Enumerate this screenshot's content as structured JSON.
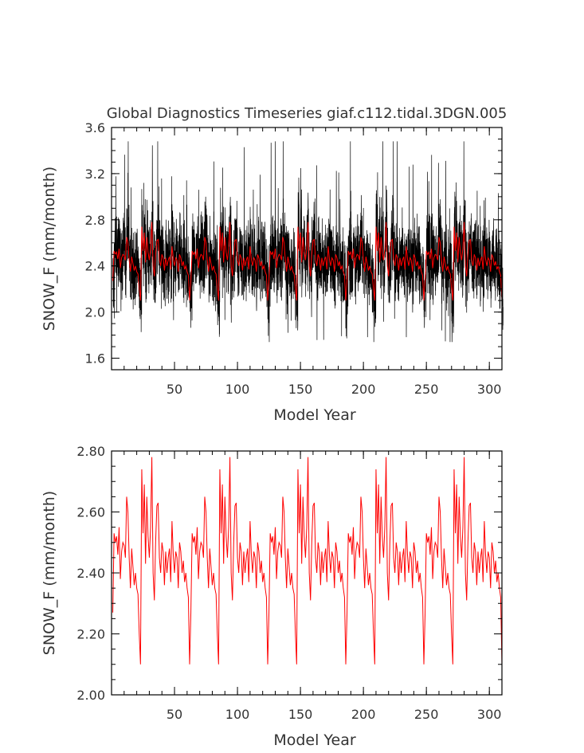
{
  "title": "Global Diagnostics Timeseries giaf.c112.tidal.3DGN.005",
  "colors": {
    "monthly": "#000000",
    "annual": "#ff0000",
    "axis": "#000000",
    "text": "#333333"
  },
  "chart_data": [
    {
      "type": "line",
      "title": "Global Diagnostics Timeseries giaf.c112.tidal.3DGN.005",
      "xlabel": "Model Year",
      "ylabel": "SNOW_F (mm/month)",
      "xlim": [
        0,
        310
      ],
      "ylim": [
        1.5,
        3.6
      ],
      "xticks": [
        50,
        100,
        150,
        200,
        250,
        300
      ],
      "xtick_labels": [
        "50",
        "100",
        "150",
        "200",
        "250",
        "300"
      ],
      "yticks": [
        1.6,
        2.0,
        2.4,
        2.8,
        3.2,
        3.6
      ],
      "ytick_labels": [
        "1.6",
        "2.0",
        "2.4",
        "2.8",
        "3.2",
        "3.6"
      ],
      "grid": false,
      "legend": "none",
      "series": [
        {
          "kind": "monthly",
          "color": "#000000",
          "description_range": [
            1.75,
            3.5
          ],
          "cycle_years": 62,
          "samples_per_year": 12
        },
        {
          "kind": "annual",
          "color": "#ff0000"
        }
      ]
    },
    {
      "type": "line",
      "xlabel": "Model Year",
      "ylabel": "SNOW_F (mm/month)",
      "xlim": [
        0,
        310
      ],
      "ylim": [
        2.0,
        2.8
      ],
      "xticks": [
        50,
        100,
        150,
        200,
        250,
        300
      ],
      "xtick_labels": [
        "50",
        "100",
        "150",
        "200",
        "250",
        "300"
      ],
      "yticks": [
        2.0,
        2.2,
        2.4,
        2.6,
        2.8
      ],
      "ytick_labels": [
        "2.00",
        "2.20",
        "2.40",
        "2.60",
        "2.80"
      ],
      "grid": false,
      "legend": "none",
      "series": [
        {
          "kind": "annual",
          "color": "#ff0000"
        }
      ]
    }
  ],
  "annual_cycle": {
    "years": [
      1,
      2,
      3,
      4,
      5,
      6,
      7,
      8,
      9,
      10,
      11,
      12,
      13,
      14,
      15,
      16,
      17,
      18,
      19,
      20,
      21,
      22,
      23,
      24,
      25,
      26,
      27,
      28,
      29,
      30,
      31,
      32,
      33,
      34,
      35,
      36,
      37,
      38,
      39,
      40,
      41,
      42,
      43,
      44,
      45,
      46,
      47,
      48,
      49,
      50,
      51,
      52,
      53,
      54,
      55,
      56,
      57,
      58,
      59,
      60,
      61,
      62
    ],
    "values": [
      2.27,
      2.53,
      2.5,
      2.52,
      2.46,
      2.55,
      2.38,
      2.47,
      2.5,
      2.49,
      2.45,
      2.65,
      2.6,
      2.45,
      2.35,
      2.48,
      2.42,
      2.36,
      2.4,
      2.35,
      2.33,
      2.2,
      2.1,
      2.74,
      2.53,
      2.69,
      2.43,
      2.65,
      2.52,
      2.45,
      2.55,
      2.78,
      2.4,
      2.31,
      2.5,
      2.62,
      2.63,
      2.45,
      2.4,
      2.5,
      2.47,
      2.36,
      2.47,
      2.4,
      2.45,
      2.48,
      2.37,
      2.57,
      2.46,
      2.4,
      2.47,
      2.45,
      2.35,
      2.5,
      2.47,
      2.4,
      2.44,
      2.37,
      2.4,
      2.35,
      2.32,
      2.1
    ]
  }
}
